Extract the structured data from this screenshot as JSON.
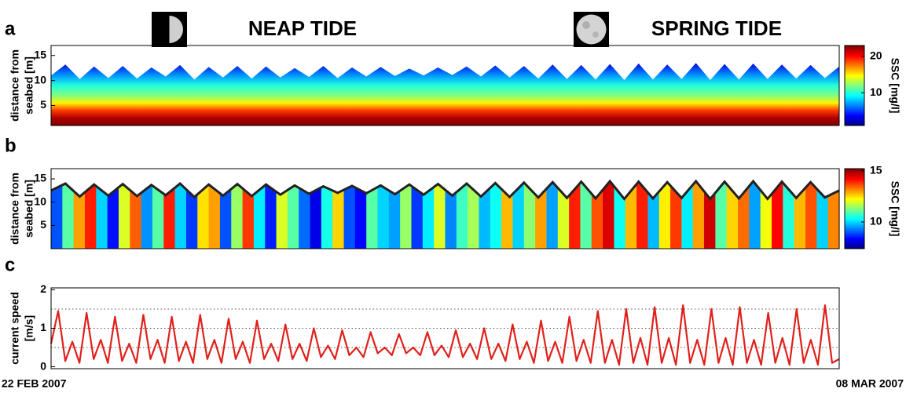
{
  "chart_data": [
    {
      "type": "heatmap",
      "label": "a",
      "ylabel": [
        "distance from",
        "seabed [m]"
      ],
      "ylim": [
        1,
        17
      ],
      "yticks": [
        5,
        10,
        15
      ],
      "surface": [
        11,
        13.2,
        10.3,
        12.8,
        10.5,
        12.9,
        10.4,
        12.6,
        10.8,
        13.1,
        10.2,
        12.7,
        10.6,
        12.9,
        10.4,
        12.8,
        10.6,
        12.5,
        10.7,
        12.9,
        10.5,
        12.6,
        10.8,
        12.7,
        10.9,
        12.4,
        11,
        12.6,
        11.1,
        12.8,
        10.8,
        13,
        10.6,
        12.9,
        10.4,
        13.2,
        10.3,
        13.1,
        10.2,
        13.3,
        10.1,
        13.4,
        10.2,
        13.2,
        10.3,
        13.5,
        10.1,
        13.3,
        10.2,
        13.4,
        10.3,
        13.2,
        10.4,
        13.1,
        10.5,
        12.8
      ],
      "profile": {
        "heights": [
          1,
          2.5,
          4,
          5.5,
          7,
          9,
          11,
          13.5
        ],
        "values": [
          23,
          22,
          19,
          15,
          12,
          10,
          7,
          3
        ]
      },
      "colorbar": {
        "label": "SSC [mg/l]",
        "lim": [
          1,
          23
        ],
        "ticks": [
          10,
          20
        ]
      },
      "annotations": [
        "NEAP TIDE",
        "SPRING TIDE"
      ]
    },
    {
      "type": "heatmap",
      "label": "b",
      "ylabel": [
        "distance from",
        "seabed [m]"
      ],
      "ylim": [
        0,
        17.2
      ],
      "yticks": [
        5,
        10,
        15
      ],
      "surface": [
        12.5,
        14,
        11.2,
        13.8,
        11.4,
        13.9,
        11.3,
        13.7,
        11.5,
        14,
        11.1,
        13.8,
        11.4,
        13.9,
        11.3,
        13.8,
        11.6,
        13.6,
        11.8,
        13.4,
        12,
        13.5,
        11.9,
        13.6,
        11.7,
        13.8,
        11.6,
        13.9,
        11.4,
        14,
        11.2,
        14.1,
        11.1,
        14.2,
        11,
        14.3,
        10.9,
        14.4,
        10.8,
        14.5,
        10.7,
        14.4,
        10.8,
        14.3,
        10.9,
        14.5,
        10.7,
        14.4,
        10.8,
        14.5,
        10.7,
        14.4,
        10.9,
        14.3,
        11,
        12.5
      ],
      "column_values": [
        9,
        11,
        13,
        14,
        10,
        8.5,
        12,
        13.5,
        9.5,
        11,
        14,
        10,
        8.8,
        12.5,
        13,
        9,
        11.5,
        13.8,
        10.2,
        8.6,
        12,
        11,
        9.2,
        8.2,
        10.5,
        12.6,
        9,
        8.4,
        11,
        10,
        9.6,
        11.5,
        8.8,
        10.2,
        12,
        9.4,
        10.8,
        11.6,
        9.8,
        10.4,
        12.8,
        10,
        11.4,
        13,
        9.6,
        12,
        14,
        11,
        13.6,
        14.5,
        10.4,
        12.8,
        14,
        9.8,
        12.4,
        13.8,
        10.2,
        13,
        14.6,
        11,
        12.6,
        13.4,
        9.6,
        12.2,
        14.2,
        10.6,
        12.8,
        13.6,
        10,
        13.2
      ],
      "colorbar": {
        "label": "SSC [mg/l]",
        "lim": [
          7.4,
          15.2
        ],
        "ticks": [
          10,
          15
        ]
      }
    },
    {
      "type": "line",
      "label": "c",
      "ylabel": [
        "current speed",
        "[m/s]"
      ],
      "ylim": [
        -0.05,
        2.05
      ],
      "yticks": [
        0,
        1,
        2
      ],
      "grid_lines": [
        0.5,
        1,
        1.5
      ],
      "color": "#e0201b",
      "xlabels": [
        "22 FEB 2007",
        "08 MAR 2007"
      ],
      "values": [
        0.6,
        1.45,
        0.15,
        0.65,
        0.1,
        1.4,
        0.2,
        0.7,
        0.1,
        1.3,
        0.15,
        0.6,
        0.1,
        1.35,
        0.2,
        0.7,
        0.1,
        1.3,
        0.15,
        0.65,
        0.1,
        1.35,
        0.2,
        0.7,
        0.1,
        1.25,
        0.2,
        0.65,
        0.1,
        1.2,
        0.2,
        0.6,
        0.15,
        1.1,
        0.2,
        0.6,
        0.15,
        1.0,
        0.25,
        0.55,
        0.2,
        0.95,
        0.3,
        0.5,
        0.25,
        0.9,
        0.35,
        0.5,
        0.3,
        0.85,
        0.35,
        0.5,
        0.3,
        0.9,
        0.3,
        0.55,
        0.25,
        0.95,
        0.25,
        0.6,
        0.2,
        1.0,
        0.2,
        0.6,
        0.15,
        1.1,
        0.2,
        0.65,
        0.1,
        1.2,
        0.15,
        0.65,
        0.1,
        1.3,
        0.15,
        0.7,
        0.1,
        1.45,
        0.1,
        0.7,
        0.05,
        1.5,
        0.1,
        0.75,
        0.05,
        1.55,
        0.1,
        0.75,
        0.05,
        1.6,
        0.1,
        0.7,
        0.05,
        1.5,
        0.1,
        0.75,
        0.05,
        1.55,
        0.1,
        0.7,
        0.05,
        1.4,
        0.1,
        0.75,
        0.05,
        1.5,
        0.1,
        0.7,
        0.05,
        1.6,
        0.1,
        0.2
      ]
    }
  ]
}
